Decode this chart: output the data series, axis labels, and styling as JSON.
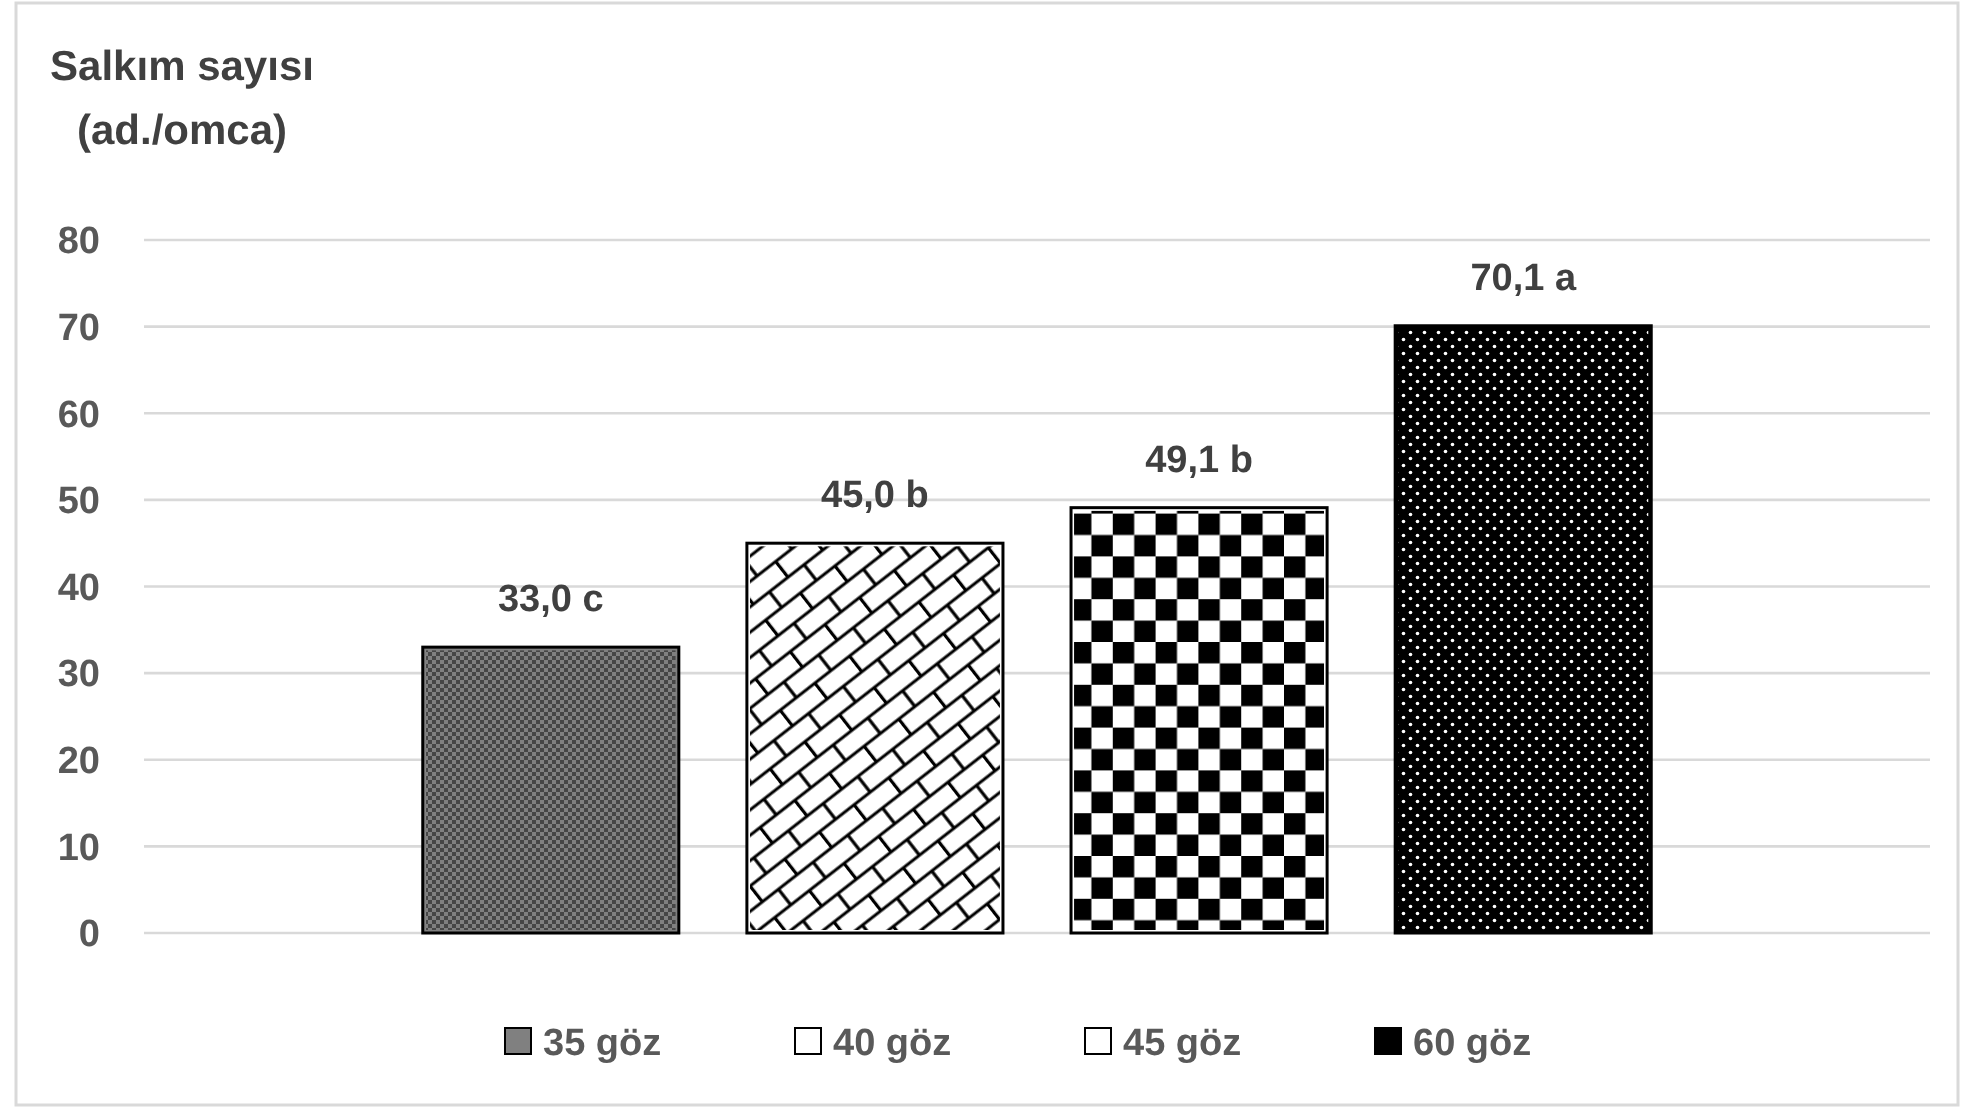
{
  "chart_data": {
    "type": "bar",
    "ylabel": "Salkım sayısı\n(ad./omca)",
    "categories": [
      null
    ],
    "series": [
      {
        "name": "35 göz",
        "color": "#808080",
        "values": [
          33.0
        ],
        "value_labels": [
          "33,0 c"
        ]
      },
      {
        "name": "40 göz",
        "color": "#ffffff",
        "values": [
          45.0
        ],
        "value_labels": [
          "45,0 b"
        ]
      },
      {
        "name": "45 göz",
        "color": "#ffffff",
        "values": [
          49.1
        ],
        "value_labels": [
          "49,1 b"
        ]
      },
      {
        "name": "60 göz",
        "color": "#000000",
        "values": [
          70.1
        ],
        "value_labels": [
          "70,1 a"
        ]
      }
    ],
    "ylim": [
      0,
      80
    ],
    "yticks": [
      0,
      10,
      20,
      30,
      40,
      50,
      60,
      70,
      80
    ],
    "grid": "y",
    "legend": "bottom"
  }
}
